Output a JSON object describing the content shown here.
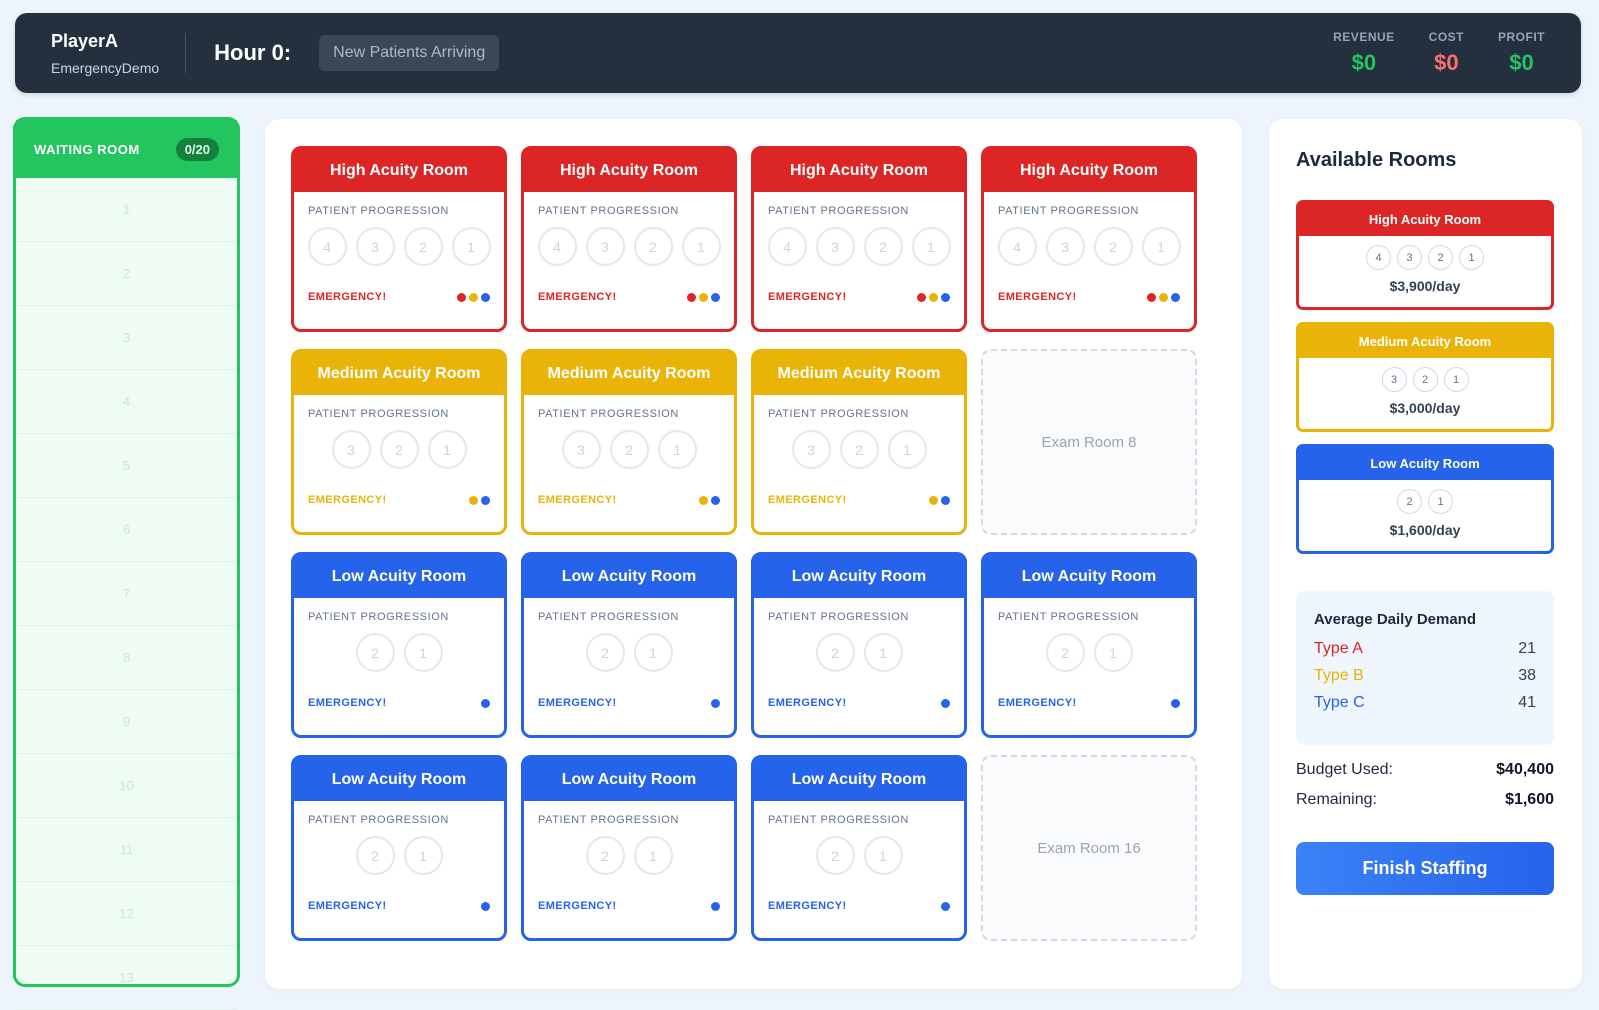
{
  "header": {
    "player_name": "PlayerA",
    "game_name": "EmergencyDemo",
    "hour_label": "Hour 0:",
    "phase": "New Patients Arriving",
    "stats": [
      {
        "label": "REVENUE",
        "value": "$0",
        "color": "#22c55e"
      },
      {
        "label": "COST",
        "value": "$0",
        "color": "#f87171"
      },
      {
        "label": "PROFIT",
        "value": "$0",
        "color": "#22c55e"
      }
    ]
  },
  "waiting_room": {
    "title": "WAITING ROOM",
    "count": "0/20",
    "slots": [
      "1",
      "2",
      "3",
      "4",
      "5",
      "6",
      "7",
      "8",
      "9",
      "10",
      "11",
      "12",
      "13"
    ]
  },
  "room_common": {
    "progression_label": "PATIENT PROGRESSION",
    "emergency_label": "EMERGENCY!"
  },
  "rooms": [
    {
      "type": "high",
      "title": "High Acuity Room",
      "steps": [
        "4",
        "3",
        "2",
        "1"
      ],
      "dots": [
        "r",
        "y",
        "b"
      ]
    },
    {
      "type": "high",
      "title": "High Acuity Room",
      "steps": [
        "4",
        "3",
        "2",
        "1"
      ],
      "dots": [
        "r",
        "y",
        "b"
      ]
    },
    {
      "type": "high",
      "title": "High Acuity Room",
      "steps": [
        "4",
        "3",
        "2",
        "1"
      ],
      "dots": [
        "r",
        "y",
        "b"
      ]
    },
    {
      "type": "high",
      "title": "High Acuity Room",
      "steps": [
        "4",
        "3",
        "2",
        "1"
      ],
      "dots": [
        "r",
        "y",
        "b"
      ]
    },
    {
      "type": "med",
      "title": "Medium Acuity Room",
      "steps": [
        "3",
        "2",
        "1"
      ],
      "dots": [
        "y",
        "b"
      ]
    },
    {
      "type": "med",
      "title": "Medium Acuity Room",
      "steps": [
        "3",
        "2",
        "1"
      ],
      "dots": [
        "y",
        "b"
      ]
    },
    {
      "type": "med",
      "title": "Medium Acuity Room",
      "steps": [
        "3",
        "2",
        "1"
      ],
      "dots": [
        "y",
        "b"
      ]
    },
    {
      "type": "empty",
      "title": "Exam Room 8"
    },
    {
      "type": "low",
      "title": "Low Acuity Room",
      "steps": [
        "2",
        "1"
      ],
      "dots": [
        "b"
      ]
    },
    {
      "type": "low",
      "title": "Low Acuity Room",
      "steps": [
        "2",
        "1"
      ],
      "dots": [
        "b"
      ]
    },
    {
      "type": "low",
      "title": "Low Acuity Room",
      "steps": [
        "2",
        "1"
      ],
      "dots": [
        "b"
      ]
    },
    {
      "type": "low",
      "title": "Low Acuity Room",
      "steps": [
        "2",
        "1"
      ],
      "dots": [
        "b"
      ]
    },
    {
      "type": "low",
      "title": "Low Acuity Room",
      "steps": [
        "2",
        "1"
      ],
      "dots": [
        "b"
      ]
    },
    {
      "type": "low",
      "title": "Low Acuity Room",
      "steps": [
        "2",
        "1"
      ],
      "dots": [
        "b"
      ]
    },
    {
      "type": "low",
      "title": "Low Acuity Room",
      "steps": [
        "2",
        "1"
      ],
      "dots": [
        "b"
      ]
    },
    {
      "type": "empty",
      "title": "Exam Room 16"
    }
  ],
  "sidebar": {
    "title": "Available Rooms",
    "available": [
      {
        "type": "high",
        "title": "High Acuity Room",
        "steps": [
          "4",
          "3",
          "2",
          "1"
        ],
        "price": "$3,900/day"
      },
      {
        "type": "med",
        "title": "Medium Acuity Room",
        "steps": [
          "3",
          "2",
          "1"
        ],
        "price": "$3,000/day"
      },
      {
        "type": "low",
        "title": "Low Acuity Room",
        "steps": [
          "2",
          "1"
        ],
        "price": "$1,600/day"
      }
    ],
    "demand": {
      "title": "Average Daily Demand",
      "rows": [
        {
          "label": "Type A",
          "value": "21"
        },
        {
          "label": "Type B",
          "value": "38"
        },
        {
          "label": "Type C",
          "value": "41"
        }
      ]
    },
    "budget_used_label": "Budget Used:",
    "budget_used_value": "$40,400",
    "remaining_label": "Remaining:",
    "remaining_value": "$1,600",
    "finish_label": "Finish Staffing"
  },
  "colors": {
    "high": "#dc2626",
    "medium": "#eab308",
    "low": "#2563eb",
    "waiting": "#22c55e"
  }
}
